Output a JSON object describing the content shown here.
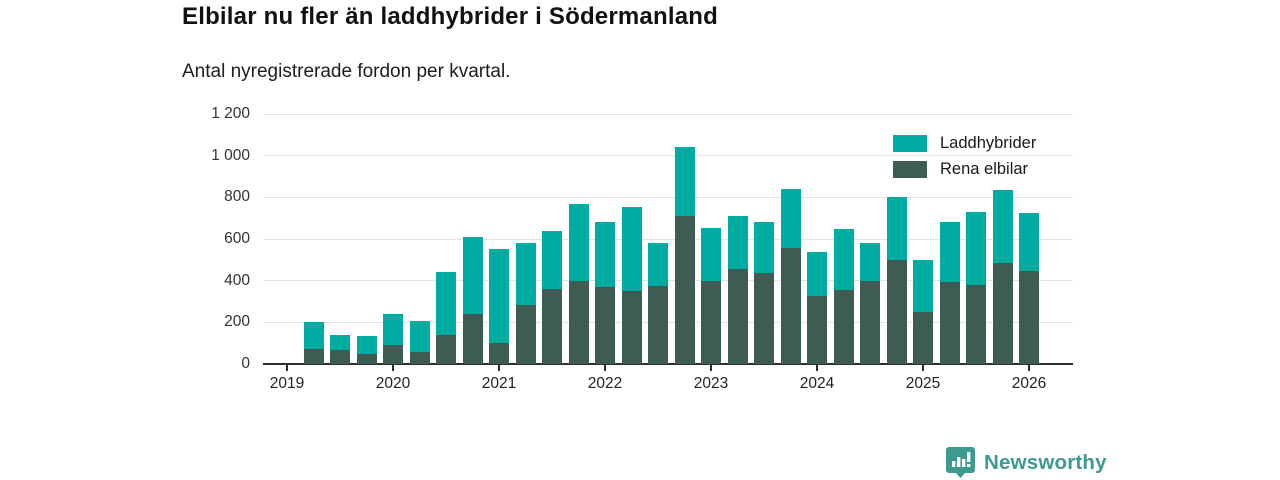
{
  "header": {
    "title": "Elbilar nu fler än laddhybrider i Södermanland",
    "subtitle": "Antal nyregistrerade fordon per kvartal."
  },
  "colors": {
    "laddhybrider": "#00aba1",
    "rena_elbilar": "#3e5b54",
    "grid": "#e3e3e3",
    "axis": "#2e2e2e",
    "logo": "#3d9a8e"
  },
  "legend": {
    "items": [
      {
        "label": "Laddhybrider",
        "color_key": "laddhybrider"
      },
      {
        "label": "Rena elbilar",
        "color_key": "rena_elbilar"
      }
    ]
  },
  "chart_data": {
    "type": "bar",
    "stacked": true,
    "title": "Elbilar nu fler än laddhybrider i Södermanland",
    "subtitle": "Antal nyregistrerade fordon per kvartal.",
    "ylim": [
      0,
      1200
    ],
    "grid": true,
    "legend_position": "top-right",
    "y_ticks": [
      0,
      200,
      400,
      600,
      800,
      1000,
      1200
    ],
    "y_tick_labels": [
      "0",
      "200",
      "400",
      "600",
      "800",
      "1 000",
      "1 200"
    ],
    "x_tick_labels": [
      "2019",
      "2020",
      "2021",
      "2022",
      "2023",
      "2024",
      "2025",
      "2026"
    ],
    "categories": [
      "2019 Q2",
      "2019 Q3",
      "2019 Q4",
      "2020 Q1",
      "2020 Q2",
      "2020 Q3",
      "2020 Q4",
      "2021 Q1",
      "2021 Q2",
      "2021 Q3",
      "2021 Q4",
      "2022 Q1",
      "2022 Q2",
      "2022 Q3",
      "2022 Q4",
      "2023 Q1",
      "2023 Q2",
      "2023 Q3",
      "2023 Q4",
      "2024 Q1",
      "2024 Q2",
      "2024 Q3",
      "2024 Q4",
      "2025 Q1",
      "2025 Q2",
      "2025 Q3",
      "2025 Q4",
      "2026 Q1"
    ],
    "series": [
      {
        "name": "Rena elbilar",
        "stack_position": "bottom",
        "values": [
          70,
          65,
          50,
          90,
          60,
          140,
          240,
          100,
          285,
          360,
          400,
          370,
          350,
          375,
          710,
          400,
          455,
          435,
          555,
          325,
          355,
          400,
          500,
          250,
          395,
          380,
          485,
          445
        ]
      },
      {
        "name": "Laddhybrider",
        "stack_position": "top",
        "values": [
          130,
          75,
          85,
          150,
          145,
          300,
          370,
          450,
          295,
          280,
          370,
          310,
          405,
          205,
          330,
          255,
          255,
          245,
          285,
          215,
          295,
          180,
          300,
          250,
          285,
          350,
          350,
          280
        ]
      }
    ]
  },
  "footer": {
    "brand": "Newsworthy"
  }
}
